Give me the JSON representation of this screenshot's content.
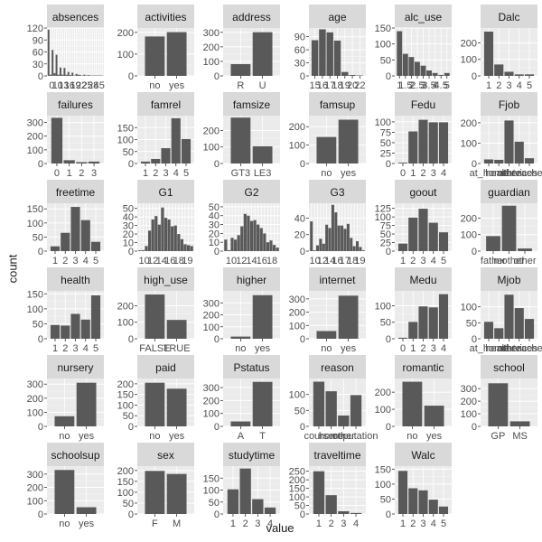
{
  "figure": {
    "xlabel": "value",
    "ylabel": "count"
  },
  "chart_data": [
    {
      "type": "bar",
      "title": "absences",
      "ylim": [
        0,
        120
      ],
      "yticks": [
        0,
        30,
        60,
        90,
        120
      ],
      "tick_labels": [
        "0",
        "10",
        "13",
        "16",
        "19",
        "22",
        "25",
        "28",
        "45"
      ],
      "categories": [
        "0",
        "1",
        "2",
        "3",
        "4",
        "5",
        "6",
        "7",
        "8",
        "9",
        "10",
        "11",
        "12",
        "13",
        "14",
        "15",
        "16",
        "17",
        "18",
        "19",
        "20",
        "21",
        "22",
        "26",
        "27",
        "29",
        "44",
        "45"
      ],
      "values": [
        116,
        3,
        65,
        7,
        53,
        3,
        21,
        3,
        20,
        3,
        10,
        2,
        8,
        1,
        5,
        3,
        2,
        1,
        3,
        1,
        2,
        1,
        1,
        1,
        1,
        1,
        1,
        1
      ]
    },
    {
      "type": "bar",
      "title": "activities",
      "ylim": [
        0,
        220
      ],
      "yticks": [
        0,
        100,
        200
      ],
      "categories": [
        "no",
        "yes"
      ],
      "values": [
        181,
        201
      ]
    },
    {
      "type": "bar",
      "title": "address",
      "ylim": [
        0,
        330
      ],
      "yticks": [
        0,
        100,
        200,
        300
      ],
      "categories": [
        "R",
        "U"
      ],
      "values": [
        81,
        301
      ]
    },
    {
      "type": "bar",
      "title": "age",
      "ylim": [
        0,
        110
      ],
      "yticks": [
        0,
        30,
        60,
        90
      ],
      "categories": [
        "15",
        "16",
        "17",
        "18",
        "19",
        "20",
        "22"
      ],
      "tick_labels": [
        "15",
        "16",
        "17",
        "18",
        "19",
        "20",
        "22"
      ],
      "values": [
        82,
        107,
        100,
        81,
        9,
        2,
        1
      ]
    },
    {
      "type": "bar",
      "title": "alc_use",
      "ylim": [
        0,
        150
      ],
      "yticks": [
        0,
        50,
        100,
        150
      ],
      "categories": [
        "1",
        "1.5",
        "2",
        "2.5",
        "3",
        "3.5",
        "4",
        "4.5",
        "5"
      ],
      "tick_labels": [
        "1",
        "1.5",
        "2",
        "2.5",
        "3",
        "3.5",
        "4",
        "4.5",
        "5"
      ],
      "values": [
        140,
        69,
        59,
        44,
        32,
        17,
        9,
        3,
        9
      ]
    },
    {
      "type": "bar",
      "title": "Dalc",
      "ylim": [
        0,
        290
      ],
      "yticks": [
        0,
        100,
        200
      ],
      "categories": [
        "1",
        "2",
        "3",
        "4",
        "5"
      ],
      "values": [
        268,
        69,
        25,
        9,
        9
      ]
    },
    {
      "type": "bar",
      "title": "failures",
      "ylim": [
        0,
        350
      ],
      "yticks": [
        0,
        100,
        200,
        300
      ],
      "categories": [
        "0",
        "1",
        "2",
        "3"
      ],
      "values": [
        334,
        24,
        10,
        14
      ]
    },
    {
      "type": "bar",
      "title": "famrel",
      "ylim": [
        0,
        200
      ],
      "yticks": [
        0,
        50,
        100,
        150
      ],
      "categories": [
        "1",
        "2",
        "3",
        "4",
        "5"
      ],
      "values": [
        8,
        19,
        64,
        189,
        102
      ]
    },
    {
      "type": "bar",
      "title": "famsize",
      "ylim": [
        0,
        290
      ],
      "yticks": [
        0,
        100,
        200
      ],
      "categories": [
        "GT3",
        "LE3"
      ],
      "values": [
        278,
        104
      ]
    },
    {
      "type": "bar",
      "title": "famsup",
      "ylim": [
        0,
        260
      ],
      "yticks": [
        0,
        100,
        200
      ],
      "categories": [
        "no",
        "yes"
      ],
      "values": [
        144,
        238
      ]
    },
    {
      "type": "bar",
      "title": "Fedu",
      "ylim": [
        0,
        115
      ],
      "yticks": [
        0,
        25,
        50,
        75,
        100
      ],
      "categories": [
        "0",
        "1",
        "2",
        "3",
        "4"
      ],
      "values": [
        2,
        77,
        105,
        99,
        99
      ]
    },
    {
      "type": "bar",
      "title": "Fjob",
      "ylim": [
        0,
        235
      ],
      "yticks": [
        0,
        100,
        200
      ],
      "categories": [
        "at_home",
        "health",
        "other",
        "services",
        "teacher"
      ],
      "tick_labels": [
        "at_home",
        "health",
        "other",
        "services",
        "teacher"
      ],
      "values": [
        20,
        18,
        211,
        107,
        26
      ]
    },
    {
      "type": "bar",
      "title": "freetime",
      "ylim": [
        0,
        170
      ],
      "yticks": [
        0,
        50,
        100,
        150
      ],
      "categories": [
        "1",
        "2",
        "3",
        "4",
        "5"
      ],
      "values": [
        17,
        65,
        157,
        110,
        33
      ]
    },
    {
      "type": "bar",
      "title": "G1",
      "ylim": [
        0,
        56
      ],
      "yticks": [
        0,
        10,
        20,
        30,
        40,
        50
      ],
      "tick_labels": [
        "10",
        "12",
        "14",
        "16",
        "18",
        "19"
      ],
      "categories": [
        "3",
        "4",
        "5",
        "6",
        "7",
        "8",
        "9",
        "10",
        "11",
        "12",
        "13",
        "14",
        "15",
        "16",
        "17",
        "18",
        "19"
      ],
      "values": [
        1,
        1,
        6,
        24,
        37,
        41,
        31,
        51,
        39,
        37,
        29,
        30,
        20,
        14,
        8,
        7,
        6
      ]
    },
    {
      "type": "bar",
      "title": "G2",
      "ylim": [
        0,
        54
      ],
      "yticks": [
        0,
        10,
        20,
        30,
        40,
        50
      ],
      "tick_labels": [
        "10",
        "12",
        "14",
        "16",
        "18"
      ],
      "categories": [
        "0",
        "4",
        "5",
        "6",
        "7",
        "8",
        "9",
        "10",
        "11",
        "12",
        "13",
        "14",
        "15",
        "16",
        "17",
        "18",
        "19"
      ],
      "values": [
        13,
        1,
        15,
        13,
        18,
        28,
        42,
        40,
        34,
        35,
        30,
        26,
        20,
        10,
        12,
        7,
        4
      ]
    },
    {
      "type": "bar",
      "title": "G3",
      "ylim": [
        0,
        58
      ],
      "yticks": [
        0,
        20,
        40
      ],
      "tick_labels": [
        "10",
        "12",
        "14",
        "16",
        "17",
        "18",
        "19"
      ],
      "categories": [
        "0",
        "4",
        "5",
        "6",
        "7",
        "8",
        "9",
        "10",
        "11",
        "12",
        "13",
        "14",
        "15",
        "16",
        "17",
        "18",
        "19",
        "20"
      ],
      "values": [
        36,
        1,
        7,
        15,
        9,
        32,
        28,
        56,
        47,
        31,
        31,
        27,
        33,
        16,
        6,
        12,
        5,
        1
      ]
    },
    {
      "type": "bar",
      "title": "goout",
      "ylim": [
        0,
        140
      ],
      "yticks": [
        0,
        25,
        50,
        75,
        100,
        125
      ],
      "categories": [
        "1",
        "2",
        "3",
        "4",
        "5"
      ],
      "values": [
        22,
        98,
        124,
        83,
        55
      ]
    },
    {
      "type": "bar",
      "title": "guardian",
      "ylim": [
        0,
        290
      ],
      "yticks": [
        0,
        100,
        200
      ],
      "categories": [
        "father",
        "mother",
        "other"
      ],
      "tick_labels": [
        "father",
        "mother",
        "other"
      ],
      "values": [
        91,
        275,
        16
      ]
    },
    {
      "type": "bar",
      "title": "health",
      "ylim": [
        0,
        160
      ],
      "yticks": [
        0,
        50,
        100,
        150
      ],
      "categories": [
        "1",
        "2",
        "3",
        "4",
        "5"
      ],
      "values": [
        46,
        44,
        83,
        64,
        145
      ]
    },
    {
      "type": "bar",
      "title": "high_use",
      "ylim": [
        0,
        290
      ],
      "yticks": [
        0,
        100,
        200
      ],
      "categories": [
        "FALSE",
        "TRUE"
      ],
      "values": [
        268,
        114
      ]
    },
    {
      "type": "bar",
      "title": "higher",
      "ylim": [
        0,
        400
      ],
      "yticks": [
        0,
        100,
        200,
        300
      ],
      "categories": [
        "no",
        "yes"
      ],
      "values": [
        18,
        364
      ]
    },
    {
      "type": "bar",
      "title": "internet",
      "ylim": [
        0,
        360
      ],
      "yticks": [
        0,
        100,
        200,
        300
      ],
      "categories": [
        "no",
        "yes"
      ],
      "values": [
        58,
        324
      ]
    },
    {
      "type": "bar",
      "title": "Medu",
      "ylim": [
        0,
        145
      ],
      "yticks": [
        0,
        50,
        100
      ],
      "categories": [
        "0",
        "1",
        "2",
        "3",
        "4"
      ],
      "values": [
        3,
        51,
        98,
        95,
        135
      ]
    },
    {
      "type": "bar",
      "title": "Mjob",
      "ylim": [
        0,
        150
      ],
      "yticks": [
        0,
        50,
        100
      ],
      "categories": [
        "at_home",
        "health",
        "other",
        "services",
        "teacher"
      ],
      "tick_labels": [
        "at_home",
        "health",
        "other",
        "services",
        "teacher"
      ],
      "values": [
        53,
        33,
        138,
        96,
        62
      ]
    },
    {
      "type": "bar",
      "title": "nursery",
      "ylim": [
        0,
        340
      ],
      "yticks": [
        0,
        100,
        200,
        300
      ],
      "categories": [
        "no",
        "yes"
      ],
      "values": [
        72,
        310
      ]
    },
    {
      "type": "bar",
      "title": "paid",
      "ylim": [
        0,
        225
      ],
      "yticks": [
        0,
        50,
        100,
        150,
        200
      ],
      "categories": [
        "no",
        "yes"
      ],
      "values": [
        205,
        177
      ]
    },
    {
      "type": "bar",
      "title": "Pstatus",
      "ylim": [
        0,
        370
      ],
      "yticks": [
        0,
        100,
        200,
        300
      ],
      "categories": [
        "A",
        "T"
      ],
      "values": [
        38,
        344
      ]
    },
    {
      "type": "bar",
      "title": "reason",
      "ylim": [
        0,
        150
      ],
      "yticks": [
        0,
        50,
        100
      ],
      "categories": [
        "course",
        "home",
        "other",
        "reputation"
      ],
      "tick_labels": [
        "course",
        "home",
        "other",
        "reputation"
      ],
      "values": [
        140,
        110,
        34,
        98
      ]
    },
    {
      "type": "bar",
      "title": "romantic",
      "ylim": [
        0,
        280
      ],
      "yticks": [
        0,
        100,
        200
      ],
      "categories": [
        "no",
        "yes"
      ],
      "values": [
        261,
        121
      ]
    },
    {
      "type": "bar",
      "title": "school",
      "ylim": [
        0,
        380
      ],
      "yticks": [
        0,
        100,
        200,
        300
      ],
      "categories": [
        "GP",
        "MS"
      ],
      "values": [
        342,
        40
      ]
    },
    {
      "type": "bar",
      "title": "schoolsup",
      "ylim": [
        0,
        360
      ],
      "yticks": [
        0,
        100,
        200,
        300
      ],
      "categories": [
        "no",
        "yes"
      ],
      "values": [
        331,
        51
      ]
    },
    {
      "type": "bar",
      "title": "sex",
      "ylim": [
        0,
        220
      ],
      "yticks": [
        0,
        50,
        100,
        150,
        200
      ],
      "categories": [
        "F",
        "M"
      ],
      "values": [
        198,
        184
      ]
    },
    {
      "type": "bar",
      "title": "studytime",
      "ylim": [
        0,
        200
      ],
      "yticks": [
        0,
        50,
        100,
        150
      ],
      "categories": [
        "1",
        "2",
        "3",
        "4"
      ],
      "values": [
        103,
        190,
        62,
        27
      ]
    },
    {
      "type": "bar",
      "title": "traveltime",
      "ylim": [
        0,
        280
      ],
      "yticks": [
        0,
        50,
        100,
        150,
        200,
        250
      ],
      "categories": [
        "1",
        "2",
        "3",
        "4"
      ],
      "values": [
        250,
        110,
        16,
        6
      ]
    },
    {
      "type": "bar",
      "title": "Walc",
      "ylim": [
        0,
        160
      ],
      "yticks": [
        0,
        50,
        100,
        150
      ],
      "categories": [
        "1",
        "2",
        "3",
        "4",
        "5"
      ],
      "values": [
        144,
        86,
        79,
        48,
        25
      ]
    }
  ]
}
